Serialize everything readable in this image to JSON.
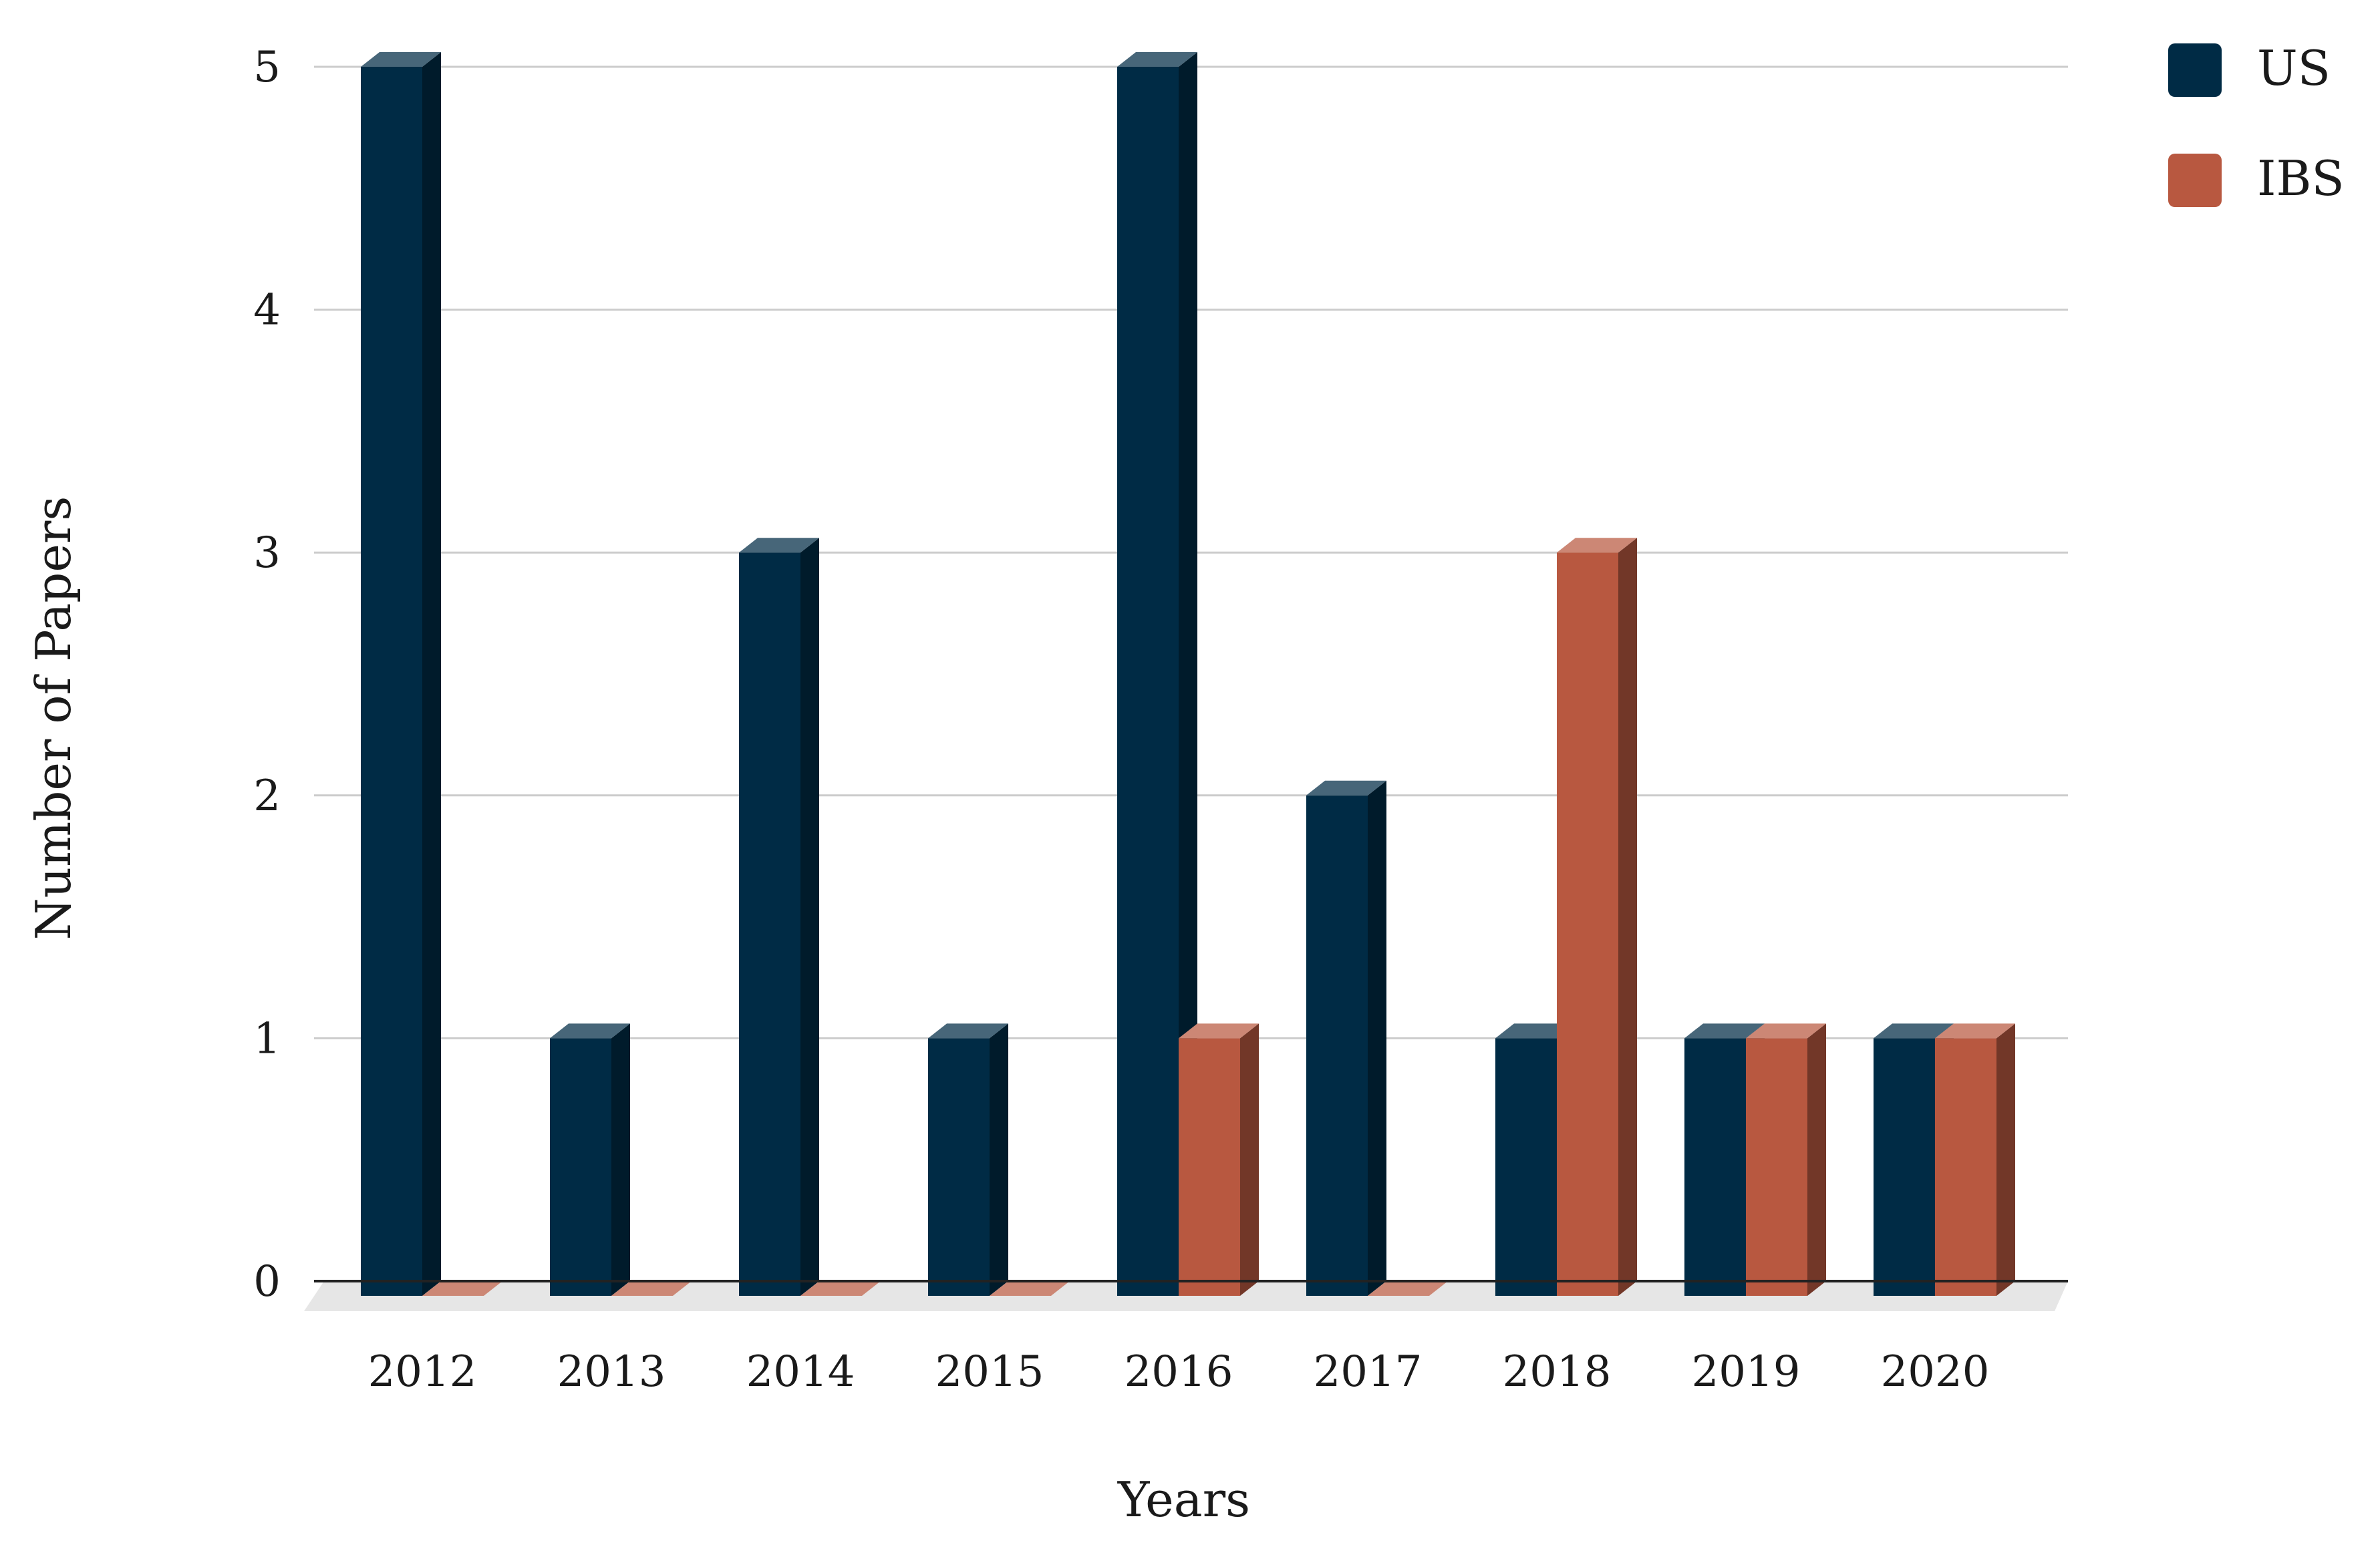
{
  "chart_data": {
    "type": "bar",
    "categories": [
      "2012",
      "2013",
      "2014",
      "2015",
      "2016",
      "2017",
      "2018",
      "2019",
      "2020"
    ],
    "series": [
      {
        "name": "US",
        "values": [
          5,
          1,
          3,
          1,
          5,
          2,
          1,
          1,
          1
        ]
      },
      {
        "name": "IBS",
        "values": [
          0,
          0,
          0,
          0,
          1,
          0,
          3,
          1,
          1
        ]
      }
    ],
    "title": "",
    "xlabel": "Years",
    "ylabel": "Number of Papers",
    "ylim": [
      0,
      5
    ],
    "yticks": [
      "0",
      "1",
      "2",
      "3",
      "4",
      "5"
    ],
    "grid": true,
    "legend_position": "top-right",
    "style": "3d"
  },
  "colors": {
    "US": "#002b45",
    "IBS": "#b85840",
    "gridline": "#cccccc",
    "axis": "#222222"
  }
}
